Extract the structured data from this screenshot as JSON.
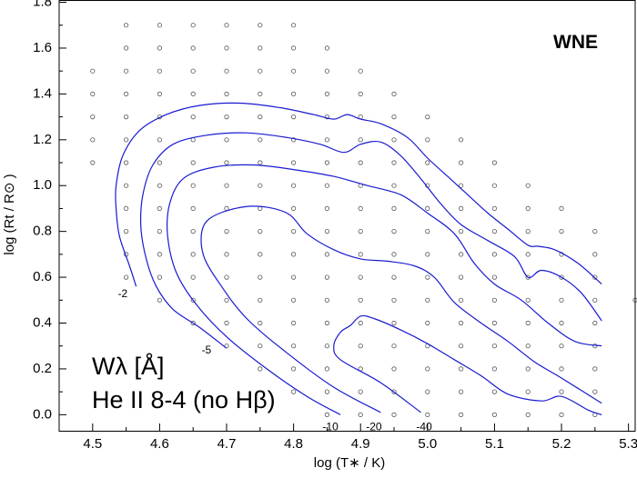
{
  "chart_data": {
    "type": "contour",
    "corner_label": "WNE",
    "annotation_line1": "Wλ [Å]",
    "annotation_line2": "He II 8-4 (no Hβ)",
    "xlabel": "log (T∗ / K)",
    "ylabel": "log (Rt / R⊙ )",
    "xlim": [
      4.45,
      5.31
    ],
    "ylim": [
      -0.07,
      1.81
    ],
    "x_ticks": [
      4.5,
      4.6,
      4.7,
      4.8,
      4.9,
      5.0,
      5.1,
      5.2,
      5.3
    ],
    "x_tick_labels": [
      "4.5",
      "4.6",
      "4.7",
      "4.8",
      "4.9",
      "5.0",
      "5.1",
      "5.2",
      "5.3"
    ],
    "y_ticks": [
      0.0,
      0.2,
      0.4,
      0.6,
      0.8,
      1.0,
      1.2,
      1.4,
      1.6,
      1.8
    ],
    "y_tick_labels": [
      "0.0",
      "0.2",
      "0.4",
      "0.6",
      "0.8",
      "1.0",
      "1.2",
      "1.4",
      "1.6",
      "1.8"
    ],
    "colors": {
      "contour": "#1a1ad0",
      "grid_point": "#555555",
      "axis": "#000000"
    },
    "grid_rows": [
      {
        "y": 1.7,
        "x_min": 4.55,
        "x_max": 4.8
      },
      {
        "y": 1.6,
        "x_min": 4.55,
        "x_max": 4.85
      },
      {
        "y": 1.5,
        "x_min": 4.5,
        "x_max": 4.9
      },
      {
        "y": 1.4,
        "x_min": 4.5,
        "x_max": 4.95
      },
      {
        "y": 1.3,
        "x_min": 4.5,
        "x_max": 5.0
      },
      {
        "y": 1.2,
        "x_min": 4.5,
        "x_max": 5.05
      },
      {
        "y": 1.1,
        "x_min": 4.5,
        "x_max": 5.1
      },
      {
        "y": 1.0,
        "x_min": 4.55,
        "x_max": 5.15
      },
      {
        "y": 0.9,
        "x_min": 4.55,
        "x_max": 5.2
      },
      {
        "y": 0.8,
        "x_min": 4.55,
        "x_max": 5.25
      },
      {
        "y": 0.7,
        "x_min": 4.55,
        "x_max": 5.25
      },
      {
        "y": 0.6,
        "x_min": 4.55,
        "x_max": 5.25
      },
      {
        "y": 0.5,
        "x_min": 4.6,
        "x_max": 5.25
      },
      {
        "y": 0.4,
        "x_min": 4.65,
        "x_max": 5.25
      },
      {
        "y": 0.3,
        "x_min": 4.7,
        "x_max": 5.25
      },
      {
        "y": 0.2,
        "x_min": 4.75,
        "x_max": 5.25
      },
      {
        "y": 0.1,
        "x_min": 4.8,
        "x_max": 5.25
      },
      {
        "y": 0.0,
        "x_min": 4.85,
        "x_max": 5.25
      }
    ],
    "extra_points": [
      {
        "x": 5.31,
        "y": 0.5
      }
    ],
    "contours": [
      {
        "label": "-2",
        "label_at": [
          4.545,
          0.525
        ],
        "points": [
          [
            4.565,
            0.56
          ],
          [
            4.555,
            0.65
          ],
          [
            4.54,
            0.78
          ],
          [
            4.535,
            0.9
          ],
          [
            4.535,
            1.0
          ],
          [
            4.545,
            1.13
          ],
          [
            4.57,
            1.24
          ],
          [
            4.61,
            1.31
          ],
          [
            4.66,
            1.35
          ],
          [
            4.72,
            1.36
          ],
          [
            4.78,
            1.34
          ],
          [
            4.83,
            1.31
          ],
          [
            4.86,
            1.29
          ],
          [
            4.88,
            1.31
          ],
          [
            4.9,
            1.29
          ],
          [
            4.93,
            1.27
          ],
          [
            4.97,
            1.21
          ],
          [
            5.0,
            1.12
          ],
          [
            5.03,
            1.04
          ],
          [
            5.06,
            0.96
          ],
          [
            5.09,
            0.88
          ],
          [
            5.12,
            0.81
          ],
          [
            5.15,
            0.74
          ],
          [
            5.165,
            0.735
          ],
          [
            5.19,
            0.72
          ],
          [
            5.225,
            0.66
          ],
          [
            5.26,
            0.57
          ]
        ]
      },
      {
        "label": "-5",
        "label_at": [
          4.67,
          0.28
        ],
        "points": [
          [
            4.7,
            0.29
          ],
          [
            4.66,
            0.38
          ],
          [
            4.62,
            0.46
          ],
          [
            4.595,
            0.56
          ],
          [
            4.58,
            0.68
          ],
          [
            4.572,
            0.82
          ],
          [
            4.575,
            0.96
          ],
          [
            4.59,
            1.09
          ],
          [
            4.62,
            1.18
          ],
          [
            4.67,
            1.22
          ],
          [
            4.73,
            1.23
          ],
          [
            4.79,
            1.21
          ],
          [
            4.84,
            1.18
          ],
          [
            4.875,
            1.145
          ],
          [
            4.9,
            1.18
          ],
          [
            4.93,
            1.19
          ],
          [
            4.96,
            1.13
          ],
          [
            4.99,
            1.03
          ],
          [
            5.02,
            0.92
          ],
          [
            5.05,
            0.83
          ],
          [
            5.09,
            0.76
          ],
          [
            5.13,
            0.69
          ],
          [
            5.15,
            0.6
          ],
          [
            5.17,
            0.63
          ],
          [
            5.2,
            0.6
          ],
          [
            5.23,
            0.53
          ],
          [
            5.26,
            0.41
          ]
        ]
      },
      {
        "label": "-10",
        "label_at": [
          4.855,
          -0.055
        ],
        "points": [
          [
            4.87,
            0.0
          ],
          [
            4.82,
            0.08
          ],
          [
            4.76,
            0.2
          ],
          [
            4.7,
            0.34
          ],
          [
            4.655,
            0.48
          ],
          [
            4.625,
            0.62
          ],
          [
            4.612,
            0.78
          ],
          [
            4.615,
            0.92
          ],
          [
            4.635,
            1.03
          ],
          [
            4.68,
            1.08
          ],
          [
            4.74,
            1.09
          ],
          [
            4.8,
            1.07
          ],
          [
            4.86,
            1.04
          ],
          [
            4.91,
            1.0
          ],
          [
            4.96,
            0.96
          ],
          [
            5.0,
            0.88
          ],
          [
            5.04,
            0.79
          ],
          [
            5.07,
            0.66
          ],
          [
            5.1,
            0.57
          ],
          [
            5.14,
            0.5
          ],
          [
            5.18,
            0.4
          ],
          [
            5.22,
            0.32
          ],
          [
            5.26,
            0.3
          ]
        ]
      },
      {
        "label": "-20",
        "label_at": [
          4.92,
          -0.055
        ],
        "points": [
          [
            4.93,
            0.01
          ],
          [
            4.86,
            0.12
          ],
          [
            4.79,
            0.27
          ],
          [
            4.73,
            0.42
          ],
          [
            4.69,
            0.57
          ],
          [
            4.665,
            0.7
          ],
          [
            4.665,
            0.82
          ],
          [
            4.69,
            0.88
          ],
          [
            4.74,
            0.91
          ],
          [
            4.79,
            0.88
          ],
          [
            4.82,
            0.79
          ],
          [
            4.86,
            0.72
          ],
          [
            4.9,
            0.68
          ],
          [
            4.94,
            0.67
          ],
          [
            4.98,
            0.65
          ],
          [
            5.01,
            0.6
          ],
          [
            5.04,
            0.49
          ],
          [
            5.08,
            0.4
          ],
          [
            5.12,
            0.32
          ],
          [
            5.16,
            0.23
          ],
          [
            5.2,
            0.16
          ],
          [
            5.26,
            0.05
          ]
        ]
      },
      {
        "label": "-40",
        "label_at": [
          4.995,
          -0.055
        ],
        "points": [
          [
            4.99,
            0.01
          ],
          [
            4.93,
            0.14
          ],
          [
            4.87,
            0.24
          ],
          [
            4.86,
            0.3
          ],
          [
            4.87,
            0.36
          ],
          [
            4.885,
            0.39
          ],
          [
            4.9,
            0.43
          ],
          [
            4.92,
            0.42
          ],
          [
            4.96,
            0.37
          ],
          [
            5.0,
            0.31
          ],
          [
            5.04,
            0.24
          ],
          [
            5.08,
            0.17
          ],
          [
            5.12,
            0.09
          ],
          [
            5.17,
            0.06
          ],
          [
            5.2,
            0.08
          ],
          [
            5.24,
            0.02
          ],
          [
            5.26,
            0.0
          ]
        ]
      }
    ]
  }
}
